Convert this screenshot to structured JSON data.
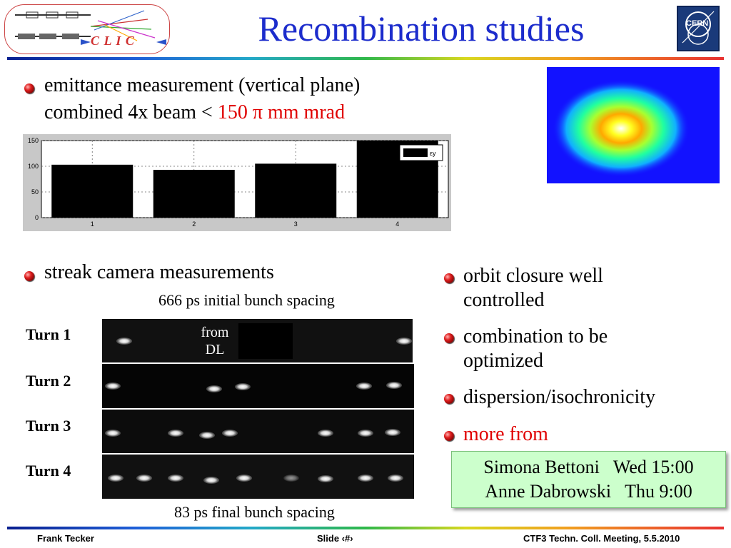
{
  "header": {
    "title": "Recombination studies",
    "logo_text": "C L I C",
    "cern_logo_text": "CERN"
  },
  "left_bullets": {
    "emittance_line1": "emittance measurement (vertical plane)",
    "emittance_line2_prefix": "combined 4x beam < ",
    "emittance_line2_value": "150 π mm mrad",
    "streak": "streak camera measurements"
  },
  "chart_data": {
    "type": "bar",
    "categories": [
      "1",
      "2",
      "3",
      "4"
    ],
    "values": [
      103,
      93,
      105,
      150
    ],
    "ylim": [
      0,
      150
    ],
    "yticks": [
      "0",
      "50",
      "100",
      "150"
    ],
    "legend_label": "εy",
    "bar_color": "#000000",
    "grid": true,
    "legend_position": "top-right"
  },
  "streak": {
    "top_caption": "666 ps initial bunch spacing",
    "bottom_caption": "83 ps final bunch spacing",
    "from_dl_line1": "from",
    "from_dl_line2": "DL",
    "turns": [
      "Turn 1",
      "Turn 2",
      "Turn 3",
      "Turn 4"
    ]
  },
  "right_bullets": {
    "items": [
      [
        "orbit closure well",
        "controlled"
      ],
      [
        "combination to be",
        "optimized"
      ],
      [
        "dispersion/isochronicity"
      ]
    ],
    "more_from": "more from",
    "refs": [
      "Simona Bettoni   Wed 15:00",
      "Anne Dabrowski   Thu 9:00"
    ]
  },
  "footer": {
    "left": "Frank Tecker",
    "center": "Slide ‹#›",
    "right": "CTF3 Techn. Coll. Meeting, 5.5.2010"
  },
  "colors": {
    "title": "#1c2ccc",
    "accent_red": "#e00000",
    "ref_box_bg": "#ccffcc",
    "beam_bg": "#1212ff"
  }
}
